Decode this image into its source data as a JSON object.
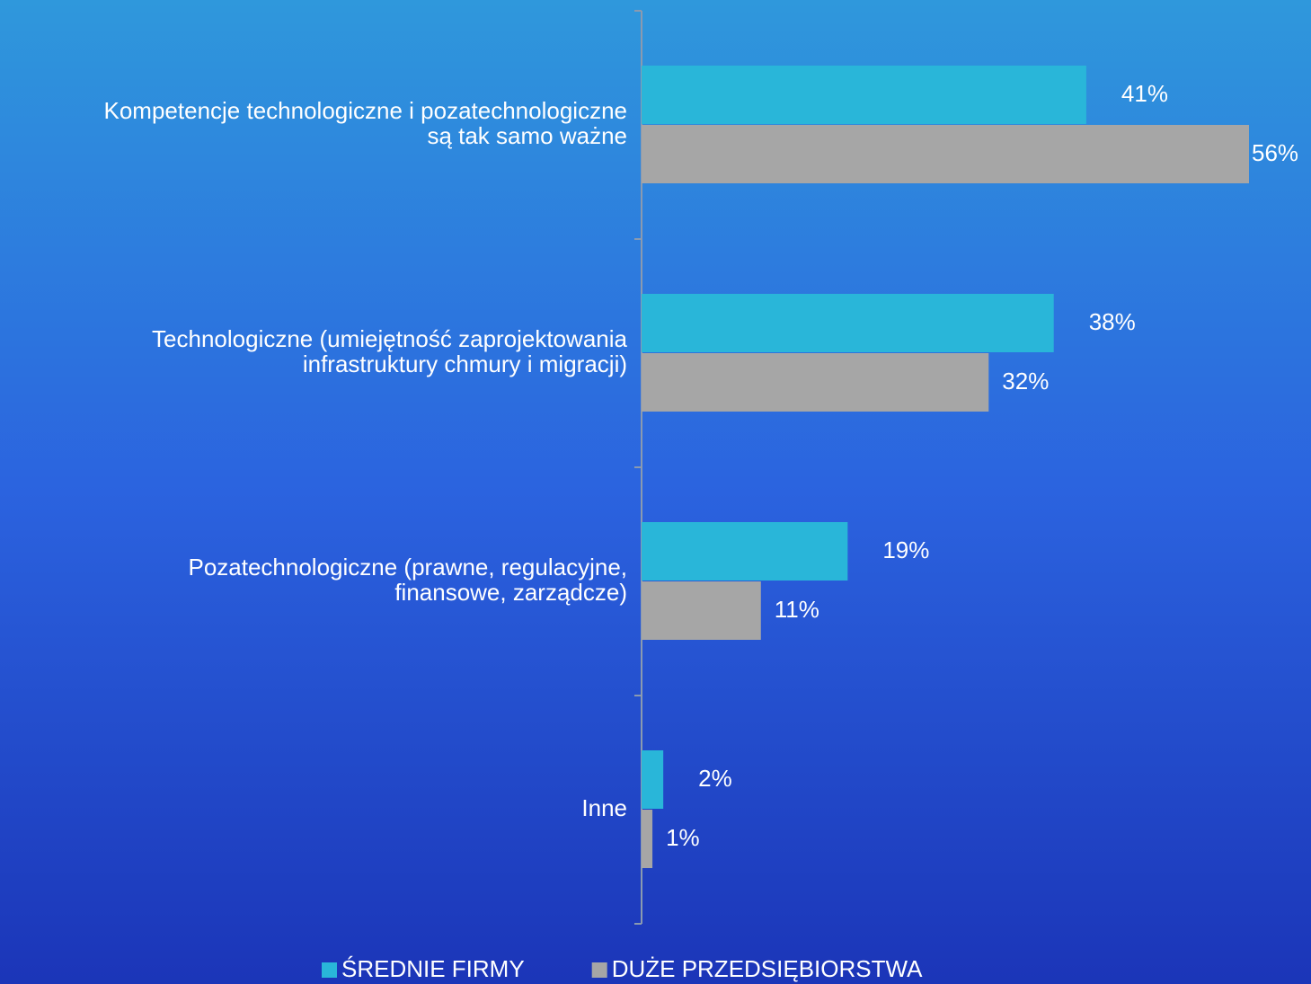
{
  "chart_data": {
    "type": "hbar",
    "categories": [
      [
        "Kompetencje technologiczne i pozatechnologiczne",
        "są tak samo ważne"
      ],
      [
        "Technologiczne (umiejętność zaprojektowania",
        "infrastruktury chmury i migracji)"
      ],
      [
        "Pozatechnologiczne (prawne, regulacyjne,",
        "finansowe, zarządcze)"
      ],
      [
        "Inne"
      ]
    ],
    "series": [
      {
        "name": "ŚREDNIE FIRMY",
        "color": "#29b6d9",
        "values": [
          41,
          38,
          19,
          2
        ],
        "value_labels": [
          "41%",
          "38%",
          "19%",
          "2%"
        ]
      },
      {
        "name": "DUŻE PRZEDSIĘBIORSTWA",
        "color": "#a6a6a6",
        "values": [
          56,
          32,
          11,
          1
        ],
        "value_labels": [
          "56%",
          "32%",
          "11%",
          "1%"
        ]
      }
    ],
    "xlim": [
      0,
      56
    ],
    "legend": "bottom"
  }
}
